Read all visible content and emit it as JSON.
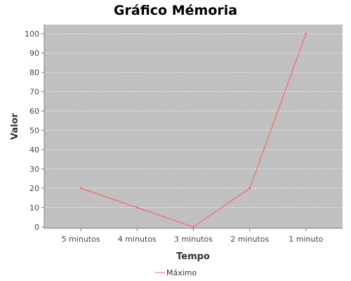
{
  "chart_data": {
    "type": "line",
    "title": "Gráfico Mémoria",
    "xlabel": "Tempo",
    "ylabel": "Valor",
    "categories": [
      "5 minutos",
      "4 minutos",
      "3 minutos",
      "2 minutos",
      "1 minuto"
    ],
    "series": [
      {
        "name": "Máximo",
        "values": [
          20,
          10,
          0,
          20,
          100
        ],
        "color": "#ff5555"
      }
    ],
    "ylim": [
      0,
      100
    ],
    "yticks": [
      "0",
      "10",
      "20",
      "30",
      "40",
      "50",
      "60",
      "70",
      "80",
      "90",
      "100"
    ],
    "grid": true,
    "legend": "bottom",
    "colors": {
      "plot_background": "#c0c0c0",
      "gridline": "#ffffff"
    }
  }
}
